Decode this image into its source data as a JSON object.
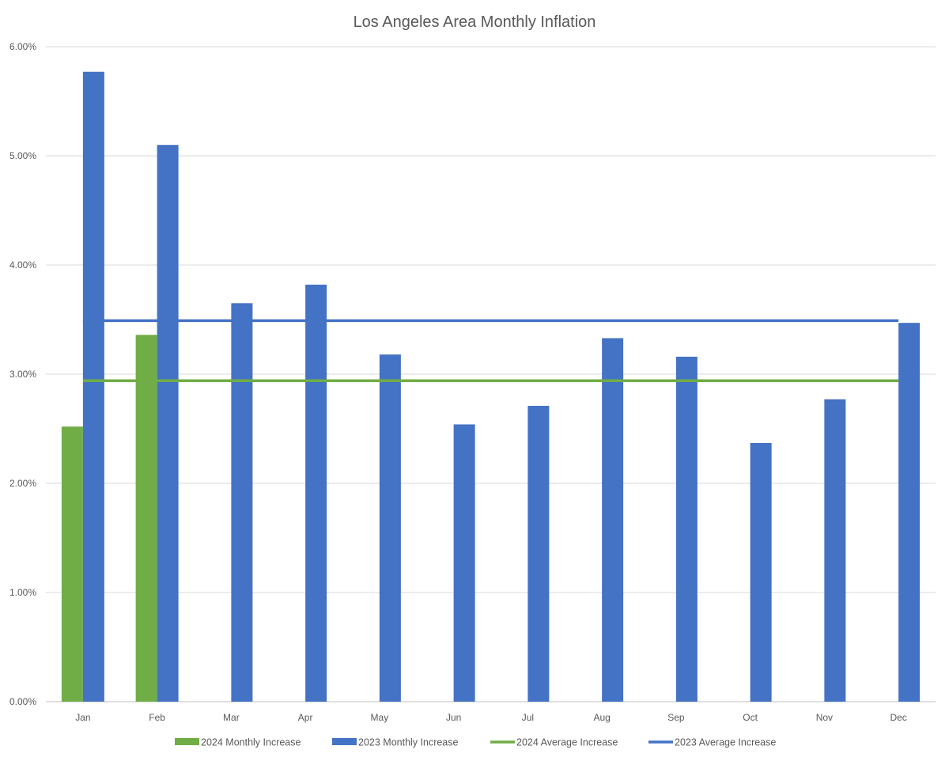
{
  "chart_data": {
    "type": "bar",
    "title": "Los Angeles Area Monthly Inflation",
    "xlabel": "",
    "ylabel": "",
    "categories": [
      "Jan",
      "Feb",
      "Mar",
      "Apr",
      "May",
      "Jun",
      "Jul",
      "Aug",
      "Sep",
      "Oct",
      "Nov",
      "Dec"
    ],
    "ylim": [
      0,
      6
    ],
    "y_ticks": [
      0,
      1,
      2,
      3,
      4,
      5,
      6
    ],
    "y_tick_labels": [
      "0.00%",
      "1.00%",
      "2.00%",
      "3.00%",
      "4.00%",
      "5.00%",
      "6.00%"
    ],
    "grid": true,
    "legend_position": "bottom",
    "series": [
      {
        "name": "2024 Monthly Increase",
        "kind": "bar",
        "color": "#70AD47",
        "values": [
          2.52,
          3.36,
          null,
          null,
          null,
          null,
          null,
          null,
          null,
          null,
          null,
          null
        ]
      },
      {
        "name": "2023 Monthly Increase",
        "kind": "bar",
        "color": "#4472C4",
        "values": [
          5.77,
          5.1,
          3.65,
          3.82,
          3.18,
          2.54,
          2.71,
          3.33,
          3.16,
          2.37,
          2.77,
          3.47
        ]
      },
      {
        "name": "2024 Average Increase",
        "kind": "line",
        "color": "#70AD47",
        "values": [
          2.94,
          2.94,
          2.94,
          2.94,
          2.94,
          2.94,
          2.94,
          2.94,
          2.94,
          2.94,
          2.94,
          2.94
        ]
      },
      {
        "name": "2023 Average Increase",
        "kind": "line",
        "color": "#4472C4",
        "values": [
          3.49,
          3.49,
          3.49,
          3.49,
          3.49,
          3.49,
          3.49,
          3.49,
          3.49,
          3.49,
          3.49,
          3.49
        ]
      }
    ]
  }
}
